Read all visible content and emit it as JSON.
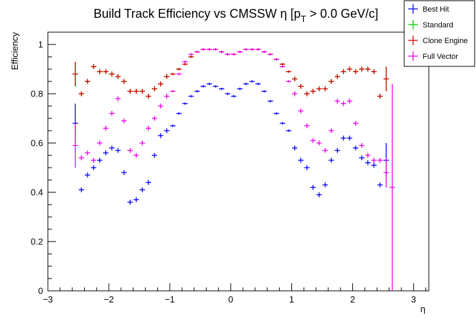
{
  "chart_data": {
    "type": "scatter",
    "title_main": "Build Track Efficiency vs CMSSW η [p",
    "title_sub": "T",
    "title_tail": " > 0.0 GeV/c]",
    "xlabel": "η",
    "ylabel": "Efficiency",
    "xlim": [
      -3.0,
      3.25
    ],
    "ylim": [
      0,
      1.05
    ],
    "x_ticks": [
      -3,
      -2,
      -1,
      0,
      1,
      2,
      3
    ],
    "x_tick_labels": [
      "−3",
      "−2",
      "−1",
      "0",
      "1",
      "2",
      "3"
    ],
    "y_ticks": [
      0,
      0.2,
      0.4,
      0.6,
      0.8,
      1
    ],
    "y_tick_labels": [
      "0",
      "0.2",
      "0.4",
      "0.6",
      "0.8",
      "1"
    ],
    "bin_half_width": 0.05,
    "legend": {
      "placement": "top-right"
    },
    "series": [
      {
        "name": "Best Hit",
        "color": "#0000ff",
        "x": [
          -2.55,
          -2.45,
          -2.35,
          -2.25,
          -2.15,
          -2.05,
          -1.95,
          -1.85,
          -1.75,
          -1.65,
          -1.55,
          -1.45,
          -1.35,
          -1.25,
          -1.15,
          -1.05,
          -0.95,
          -0.85,
          -0.75,
          -0.65,
          -0.55,
          -0.45,
          -0.35,
          -0.25,
          -0.15,
          -0.05,
          0.05,
          0.15,
          0.25,
          0.35,
          0.45,
          0.55,
          0.65,
          0.75,
          0.85,
          0.95,
          1.05,
          1.15,
          1.25,
          1.35,
          1.45,
          1.55,
          1.65,
          1.75,
          1.85,
          1.95,
          2.05,
          2.15,
          2.25,
          2.35,
          2.45,
          2.55
        ],
        "y": [
          0.68,
          0.41,
          0.47,
          0.5,
          0.53,
          0.56,
          0.58,
          0.57,
          0.48,
          0.36,
          0.37,
          0.41,
          0.44,
          0.55,
          0.63,
          0.65,
          0.67,
          0.72,
          0.76,
          0.79,
          0.81,
          0.83,
          0.84,
          0.83,
          0.82,
          0.8,
          0.79,
          0.82,
          0.84,
          0.85,
          0.84,
          0.81,
          0.77,
          0.72,
          0.68,
          0.65,
          0.58,
          0.53,
          0.5,
          0.42,
          0.39,
          0.43,
          0.53,
          0.57,
          0.62,
          0.62,
          0.58,
          0.54,
          0.52,
          0.51,
          0.43,
          0.53
        ],
        "yerr": [
          0.08,
          0.01,
          0.01,
          0.01,
          0.01,
          0.01,
          0.01,
          0.01,
          0.01,
          0.01,
          0.01,
          0.01,
          0.01,
          0.01,
          0.01,
          0.01,
          0.005,
          0.005,
          0.005,
          0.005,
          0.005,
          0.005,
          0.005,
          0.005,
          0.005,
          0.005,
          0.005,
          0.005,
          0.005,
          0.005,
          0.005,
          0.005,
          0.005,
          0.005,
          0.005,
          0.005,
          0.01,
          0.01,
          0.01,
          0.01,
          0.01,
          0.01,
          0.01,
          0.01,
          0.01,
          0.01,
          0.01,
          0.01,
          0.01,
          0.01,
          0.01,
          0.07
        ]
      },
      {
        "name": "Standard",
        "color": "#00cc00",
        "x": [
          -2.55,
          -2.45,
          -2.35,
          -2.25,
          -2.15,
          -2.05,
          -1.95,
          -1.85,
          -1.75,
          -1.65,
          -1.55,
          -1.45,
          -1.35,
          -1.25,
          -1.15,
          -1.05,
          -0.95,
          -0.85,
          -0.75,
          -0.65,
          -0.55,
          -0.45,
          -0.35,
          -0.25,
          -0.15,
          -0.05,
          0.05,
          0.15,
          0.25,
          0.35,
          0.45,
          0.55,
          0.65,
          0.75,
          0.85,
          0.95,
          1.05,
          1.15,
          1.25,
          1.35,
          1.45,
          1.55,
          1.65,
          1.75,
          1.85,
          1.95,
          2.05,
          2.15,
          2.25,
          2.35,
          2.45,
          2.55
        ],
        "y": [
          0.88,
          0.8,
          0.85,
          0.91,
          0.89,
          0.89,
          0.88,
          0.87,
          0.85,
          0.81,
          0.81,
          0.81,
          0.79,
          0.82,
          0.84,
          0.87,
          0.88,
          0.9,
          0.92,
          0.95,
          0.97,
          0.98,
          0.98,
          0.98,
          0.97,
          0.96,
          0.96,
          0.97,
          0.98,
          0.98,
          0.98,
          0.97,
          0.96,
          0.94,
          0.92,
          0.89,
          0.86,
          0.83,
          0.8,
          0.81,
          0.82,
          0.82,
          0.85,
          0.87,
          0.89,
          0.9,
          0.89,
          0.9,
          0.9,
          0.89,
          0.79,
          0.86
        ],
        "yerr": [
          0.05,
          0.01,
          0.01,
          0.01,
          0.01,
          0.01,
          0.01,
          0.01,
          0.01,
          0.01,
          0.01,
          0.01,
          0.01,
          0.01,
          0.01,
          0.01,
          0.005,
          0.005,
          0.005,
          0.005,
          0.005,
          0.005,
          0.005,
          0.005,
          0.005,
          0.005,
          0.005,
          0.005,
          0.005,
          0.005,
          0.005,
          0.005,
          0.005,
          0.005,
          0.005,
          0.005,
          0.01,
          0.01,
          0.01,
          0.01,
          0.01,
          0.01,
          0.01,
          0.01,
          0.01,
          0.01,
          0.01,
          0.01,
          0.01,
          0.01,
          0.01,
          0.05
        ]
      },
      {
        "name": "Clone Engine",
        "color": "#dd0000",
        "x": [
          -2.55,
          -2.45,
          -2.35,
          -2.25,
          -2.15,
          -2.05,
          -1.95,
          -1.85,
          -1.75,
          -1.65,
          -1.55,
          -1.45,
          -1.35,
          -1.25,
          -1.15,
          -1.05,
          -0.95,
          -0.85,
          -0.75,
          -0.65,
          -0.55,
          -0.45,
          -0.35,
          -0.25,
          -0.15,
          -0.05,
          0.05,
          0.15,
          0.25,
          0.35,
          0.45,
          0.55,
          0.65,
          0.75,
          0.85,
          0.95,
          1.05,
          1.15,
          1.25,
          1.35,
          1.45,
          1.55,
          1.65,
          1.75,
          1.85,
          1.95,
          2.05,
          2.15,
          2.25,
          2.35,
          2.45,
          2.55
        ],
        "y": [
          0.88,
          0.8,
          0.85,
          0.91,
          0.89,
          0.89,
          0.88,
          0.87,
          0.85,
          0.81,
          0.81,
          0.81,
          0.79,
          0.82,
          0.84,
          0.87,
          0.88,
          0.9,
          0.92,
          0.95,
          0.97,
          0.98,
          0.98,
          0.98,
          0.97,
          0.96,
          0.96,
          0.97,
          0.98,
          0.98,
          0.98,
          0.97,
          0.96,
          0.94,
          0.92,
          0.89,
          0.86,
          0.83,
          0.8,
          0.81,
          0.82,
          0.82,
          0.85,
          0.87,
          0.89,
          0.9,
          0.89,
          0.9,
          0.9,
          0.89,
          0.79,
          0.86
        ],
        "yerr": [
          0.05,
          0.01,
          0.01,
          0.01,
          0.01,
          0.01,
          0.01,
          0.01,
          0.01,
          0.01,
          0.01,
          0.01,
          0.01,
          0.01,
          0.01,
          0.01,
          0.005,
          0.005,
          0.005,
          0.005,
          0.005,
          0.005,
          0.005,
          0.005,
          0.005,
          0.005,
          0.005,
          0.005,
          0.005,
          0.005,
          0.005,
          0.005,
          0.005,
          0.005,
          0.005,
          0.005,
          0.01,
          0.01,
          0.01,
          0.01,
          0.01,
          0.01,
          0.01,
          0.01,
          0.01,
          0.01,
          0.01,
          0.01,
          0.01,
          0.01,
          0.01,
          0.05
        ]
      },
      {
        "name": "Full Vector",
        "color": "#ee00ee",
        "x": [
          -2.55,
          -2.45,
          -2.35,
          -2.25,
          -2.15,
          -2.05,
          -1.95,
          -1.85,
          -1.75,
          -1.65,
          -1.55,
          -1.45,
          -1.35,
          -1.25,
          -1.15,
          -1.05,
          -0.95,
          -0.85,
          -0.75,
          -0.65,
          -0.55,
          -0.45,
          -0.35,
          -0.25,
          -0.15,
          -0.05,
          0.05,
          0.15,
          0.25,
          0.35,
          0.45,
          0.55,
          0.65,
          0.75,
          0.85,
          0.95,
          1.05,
          1.15,
          1.25,
          1.35,
          1.45,
          1.55,
          1.65,
          1.75,
          1.85,
          1.95,
          2.05,
          2.15,
          2.25,
          2.35,
          2.45,
          2.55,
          2.65
        ],
        "y": [
          0.59,
          0.54,
          0.56,
          0.53,
          0.6,
          0.66,
          0.72,
          0.78,
          0.69,
          0.57,
          0.55,
          0.6,
          0.66,
          0.7,
          0.75,
          0.79,
          0.81,
          0.88,
          0.93,
          0.96,
          0.97,
          0.98,
          0.98,
          0.98,
          0.97,
          0.96,
          0.96,
          0.97,
          0.98,
          0.98,
          0.98,
          0.97,
          0.96,
          0.94,
          0.91,
          0.85,
          0.8,
          0.73,
          0.67,
          0.61,
          0.6,
          0.57,
          0.65,
          0.77,
          0.76,
          0.77,
          0.68,
          0.59,
          0.55,
          0.53,
          0.53,
          0.48,
          0.42
        ],
        "yerr": [
          0.09,
          0.01,
          0.01,
          0.01,
          0.01,
          0.01,
          0.01,
          0.01,
          0.01,
          0.01,
          0.01,
          0.01,
          0.01,
          0.01,
          0.01,
          0.01,
          0.005,
          0.005,
          0.005,
          0.005,
          0.005,
          0.005,
          0.005,
          0.005,
          0.005,
          0.005,
          0.005,
          0.005,
          0.005,
          0.005,
          0.005,
          0.005,
          0.005,
          0.005,
          0.005,
          0.005,
          0.01,
          0.01,
          0.01,
          0.01,
          0.01,
          0.01,
          0.01,
          0.01,
          0.01,
          0.01,
          0.01,
          0.01,
          0.01,
          0.01,
          0.01,
          0.06,
          0.42
        ]
      }
    ]
  }
}
